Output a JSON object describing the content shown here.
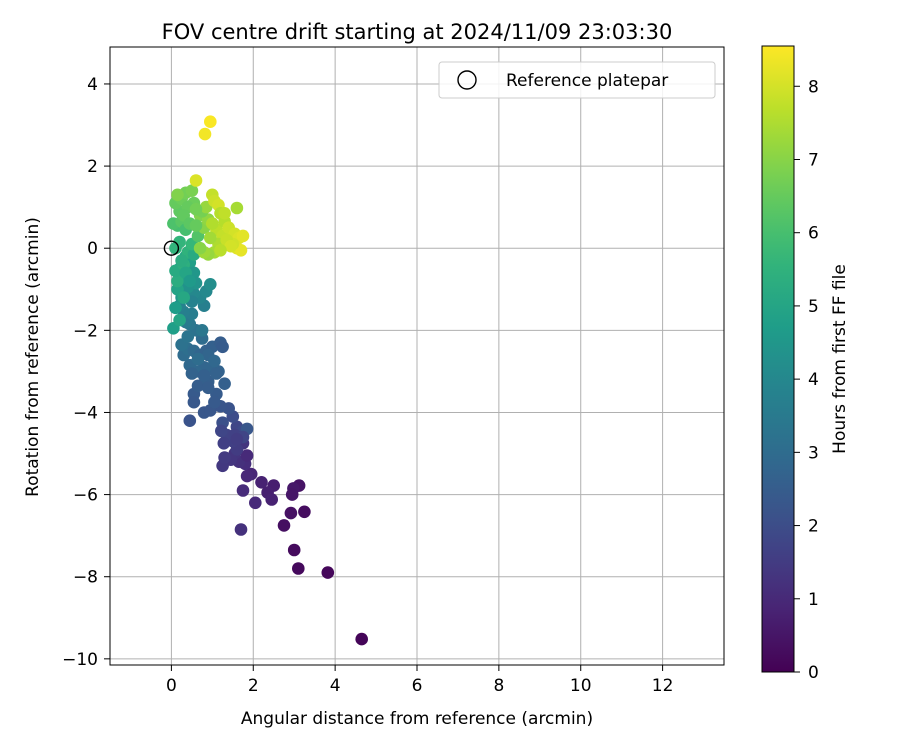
{
  "chart_data": {
    "type": "scatter",
    "title": "FOV centre drift starting at 2024/11/09 23:03:30",
    "xlabel": "Angular distance from reference (arcmin)",
    "ylabel": "Rotation from reference (arcmin)",
    "xlim": [
      -1.5,
      13.5
    ],
    "ylim": [
      -10.15,
      4.9
    ],
    "x_ticks": [
      0,
      2,
      4,
      6,
      8,
      10,
      12
    ],
    "y_ticks": [
      -10,
      -8,
      -6,
      -4,
      -2,
      0,
      2,
      4
    ],
    "grid": true,
    "legend": {
      "position": "top-right",
      "entries": [
        "Reference platepar"
      ]
    },
    "colorbar": {
      "label": "Hours from first FF file",
      "range": [
        0,
        8.55
      ],
      "ticks": [
        0,
        1,
        2,
        3,
        4,
        5,
        6,
        7,
        8
      ],
      "colormap": "viridis"
    },
    "reference_point": {
      "x": 0,
      "y": 0,
      "name": "Reference platepar"
    },
    "series": [
      {
        "points": [
          [
            4.65,
            -9.52,
            0.1
          ],
          [
            3.82,
            -7.9,
            0.15
          ],
          [
            3.1,
            -7.8,
            0.2
          ],
          [
            3.0,
            -7.35,
            0.25
          ],
          [
            2.75,
            -6.75,
            0.35
          ],
          [
            3.25,
            -6.42,
            0.3
          ],
          [
            2.92,
            -6.45,
            0.4
          ],
          [
            3.12,
            -5.78,
            0.45
          ],
          [
            2.98,
            -5.85,
            0.55
          ],
          [
            2.95,
            -6.0,
            0.5
          ],
          [
            2.5,
            -5.78,
            0.7
          ],
          [
            2.2,
            -5.7,
            0.8
          ],
          [
            2.35,
            -5.95,
            0.75
          ],
          [
            2.45,
            -6.12,
            0.8
          ],
          [
            1.95,
            -5.5,
            0.9
          ],
          [
            2.05,
            -6.2,
            1.0
          ],
          [
            1.85,
            -5.55,
            0.95
          ],
          [
            1.75,
            -5.9,
            1.05
          ],
          [
            1.7,
            -6.85,
            1.2
          ],
          [
            1.8,
            -5.25,
            1.1
          ],
          [
            1.65,
            -5.2,
            1.2
          ],
          [
            1.55,
            -5.0,
            1.3
          ],
          [
            1.45,
            -5.15,
            1.35
          ],
          [
            1.25,
            -5.3,
            1.4
          ],
          [
            1.3,
            -5.1,
            1.45
          ],
          [
            1.85,
            -5.05,
            1.0
          ],
          [
            1.75,
            -4.75,
            1.3
          ],
          [
            1.6,
            -4.9,
            1.5
          ],
          [
            1.5,
            -4.7,
            1.6
          ],
          [
            1.35,
            -4.55,
            1.7
          ],
          [
            1.6,
            -4.35,
            1.8
          ],
          [
            1.75,
            -4.45,
            1.9
          ],
          [
            1.5,
            -4.1,
            2.0
          ],
          [
            1.25,
            -4.25,
            2.1
          ],
          [
            1.4,
            -3.9,
            2.2
          ],
          [
            1.28,
            -4.75,
            1.6
          ],
          [
            1.22,
            -4.45,
            1.8
          ],
          [
            1.55,
            -4.55,
            1.65
          ],
          [
            1.85,
            -4.4,
            2.3
          ],
          [
            1.75,
            -4.6,
            1.75
          ],
          [
            1.6,
            -4.65,
            1.55
          ],
          [
            0.8,
            -4.0,
            2.3
          ],
          [
            0.45,
            -4.2,
            2.2
          ],
          [
            0.55,
            -3.55,
            2.4
          ],
          [
            0.65,
            -3.35,
            2.5
          ],
          [
            0.9,
            -3.25,
            2.55
          ],
          [
            1.1,
            -3.55,
            2.45
          ],
          [
            0.55,
            -3.75,
            2.35
          ],
          [
            0.95,
            -3.95,
            2.3
          ],
          [
            1.2,
            -3.85,
            2.25
          ],
          [
            1.05,
            -3.75,
            2.4
          ],
          [
            1.3,
            -3.3,
            2.6
          ],
          [
            1.15,
            -3.0,
            2.7
          ],
          [
            1.0,
            -2.95,
            2.75
          ],
          [
            0.8,
            -2.9,
            2.8
          ],
          [
            0.6,
            -3.0,
            2.85
          ],
          [
            0.45,
            -2.85,
            2.9
          ],
          [
            0.5,
            -3.05,
            2.7
          ],
          [
            0.3,
            -2.6,
            3.0
          ],
          [
            0.4,
            -2.45,
            3.1
          ],
          [
            0.25,
            -2.35,
            3.2
          ],
          [
            0.55,
            -2.5,
            2.95
          ],
          [
            0.7,
            -2.6,
            2.8
          ],
          [
            0.85,
            -2.5,
            2.65
          ],
          [
            1.0,
            -2.4,
            2.6
          ],
          [
            1.2,
            -2.3,
            2.5
          ],
          [
            1.25,
            -2.4,
            2.45
          ],
          [
            0.75,
            -2.2,
            3.0
          ],
          [
            0.6,
            -2.0,
            3.2
          ],
          [
            0.45,
            -1.85,
            3.4
          ],
          [
            0.35,
            -1.8,
            3.5
          ],
          [
            0.5,
            -1.6,
            3.6
          ],
          [
            0.3,
            -1.55,
            3.7
          ],
          [
            0.2,
            -1.4,
            3.8
          ],
          [
            0.8,
            -1.4,
            3.7
          ],
          [
            0.7,
            -1.2,
            3.9
          ],
          [
            0.85,
            -1.05,
            4.0
          ],
          [
            0.55,
            -1.1,
            4.0
          ],
          [
            0.95,
            -0.88,
            4.2
          ],
          [
            0.75,
            -2.0,
            3.4
          ],
          [
            0.9,
            -2.6,
            2.75
          ],
          [
            0.65,
            -2.7,
            3.05
          ],
          [
            0.8,
            -3.1,
            2.6
          ],
          [
            0.9,
            -3.4,
            2.5
          ],
          [
            1.05,
            -2.75,
            2.85
          ],
          [
            1.1,
            -3.05,
            2.65
          ],
          [
            0.4,
            -2.15,
            3.3
          ],
          [
            0.5,
            -1.3,
            3.8
          ],
          [
            0.25,
            -0.95,
            4.1
          ],
          [
            0.3,
            -0.7,
            4.3
          ],
          [
            0.2,
            -0.5,
            4.6
          ],
          [
            0.45,
            -0.35,
            4.8
          ],
          [
            0.35,
            -0.2,
            4.9
          ],
          [
            0.55,
            -0.6,
            4.5
          ],
          [
            0.6,
            -0.85,
            4.4
          ],
          [
            0.4,
            -0.95,
            4.35
          ],
          [
            0.25,
            -1.2,
            4.5
          ],
          [
            0.1,
            -1.45,
            4.7
          ],
          [
            0.05,
            -1.95,
            4.8
          ],
          [
            0.15,
            -1.0,
            4.95
          ],
          [
            0.2,
            -1.75,
            5.0
          ],
          [
            0.3,
            -1.2,
            5.1
          ],
          [
            0.15,
            -0.8,
            5.3
          ],
          [
            0.1,
            -0.55,
            5.2
          ],
          [
            0.3,
            -0.4,
            5.4
          ],
          [
            0.4,
            -0.1,
            5.5
          ],
          [
            0.2,
            0.15,
            5.6
          ],
          [
            0.1,
            0.0,
            5.55
          ],
          [
            0.25,
            -0.3,
            5.3
          ],
          [
            0.35,
            -0.6,
            5.0
          ],
          [
            0.45,
            -0.8,
            4.6
          ],
          [
            0.55,
            -0.15,
            5.2
          ],
          [
            0.5,
            0.1,
            5.7
          ],
          [
            0.65,
            0.3,
            6.2
          ],
          [
            0.15,
            0.55,
            6.0
          ],
          [
            0.05,
            0.6,
            6.1
          ],
          [
            0.25,
            0.65,
            6.3
          ],
          [
            0.35,
            0.45,
            6.0
          ],
          [
            0.2,
            0.9,
            6.4
          ],
          [
            0.1,
            1.1,
            6.5
          ],
          [
            0.25,
            1.2,
            6.6
          ],
          [
            0.35,
            1.35,
            6.7
          ],
          [
            0.5,
            1.4,
            6.8
          ],
          [
            0.55,
            1.1,
            6.6
          ],
          [
            0.4,
            1.0,
            6.5
          ],
          [
            0.7,
            0.8,
            6.9
          ],
          [
            0.8,
            0.5,
            7.0
          ],
          [
            0.9,
            0.7,
            7.1
          ],
          [
            0.15,
            1.3,
            6.9
          ],
          [
            0.3,
            0.8,
            6.45
          ],
          [
            0.45,
            0.6,
            6.35
          ],
          [
            0.6,
            0.55,
            6.5
          ],
          [
            0.75,
            0.9,
            6.75
          ],
          [
            0.85,
            1.0,
            7.2
          ],
          [
            1.0,
            1.3,
            7.8
          ],
          [
            1.05,
            1.15,
            7.9
          ],
          [
            0.6,
            1.65,
            8.1
          ],
          [
            0.95,
            3.08,
            8.5
          ],
          [
            0.82,
            2.78,
            8.4
          ],
          [
            1.15,
            1.05,
            8.0
          ],
          [
            1.2,
            0.85,
            7.6
          ],
          [
            1.1,
            0.45,
            7.7
          ],
          [
            1.25,
            0.3,
            7.8
          ],
          [
            1.15,
            0.1,
            7.5
          ],
          [
            1.05,
            -0.1,
            7.4
          ],
          [
            0.9,
            -0.15,
            7.2
          ],
          [
            0.8,
            -0.1,
            7.3
          ],
          [
            0.7,
            0.0,
            7.0
          ],
          [
            1.3,
            0.65,
            7.6
          ],
          [
            1.4,
            0.5,
            7.9
          ],
          [
            1.55,
            0.35,
            8.0
          ],
          [
            1.65,
            0.25,
            8.1
          ],
          [
            1.75,
            0.3,
            8.2
          ],
          [
            1.6,
            0.0,
            8.15
          ],
          [
            1.7,
            -0.05,
            8.25
          ],
          [
            1.5,
            0.1,
            7.95
          ],
          [
            1.6,
            0.98,
            7.4
          ],
          [
            1.3,
            0.85,
            7.75
          ],
          [
            1.0,
            0.6,
            7.55
          ],
          [
            0.95,
            0.25,
            7.35
          ],
          [
            1.35,
            0.2,
            7.85
          ],
          [
            1.45,
            0.05,
            8.0
          ],
          [
            1.2,
            -0.05,
            7.65
          ],
          [
            0.6,
            0.95,
            6.7
          ]
        ]
      }
    ]
  }
}
